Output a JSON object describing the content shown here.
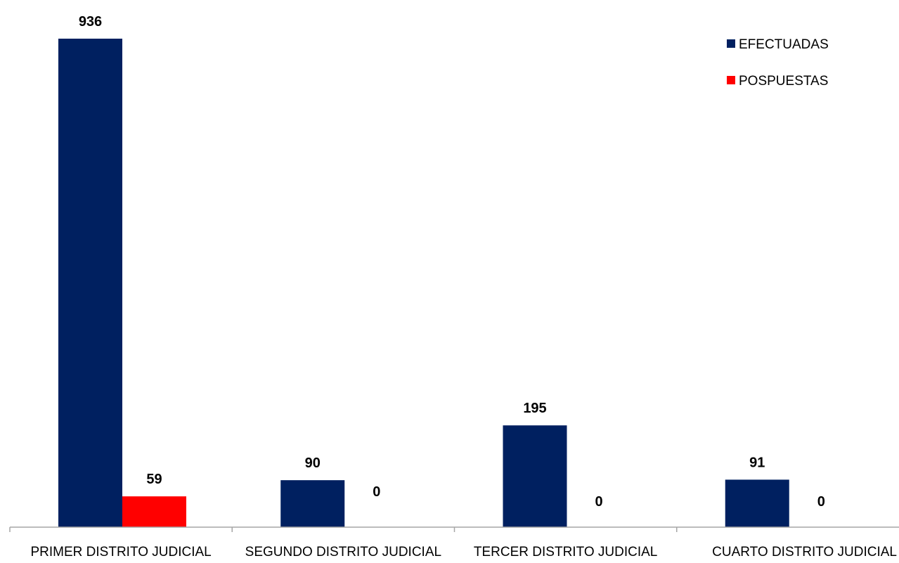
{
  "chart_data": {
    "type": "bar",
    "title": "",
    "xlabel": "",
    "ylabel": "",
    "categories": [
      "PRIMER DISTRITO JUDICIAL",
      "SEGUNDO DISTRITO JUDICIAL",
      "TERCER DISTRITO JUDICIAL",
      "CUARTO DISTRITO JUDICIAL"
    ],
    "series": [
      {
        "name": "EFECTUADAS",
        "color": "#002060",
        "values": [
          936,
          90,
          195,
          91
        ]
      },
      {
        "name": "POSPUESTAS",
        "color": "#ff0000",
        "values": [
          59,
          0,
          0,
          0
        ]
      }
    ],
    "ylim": [
      0,
      936
    ],
    "grid": false,
    "legend": "top-right"
  }
}
